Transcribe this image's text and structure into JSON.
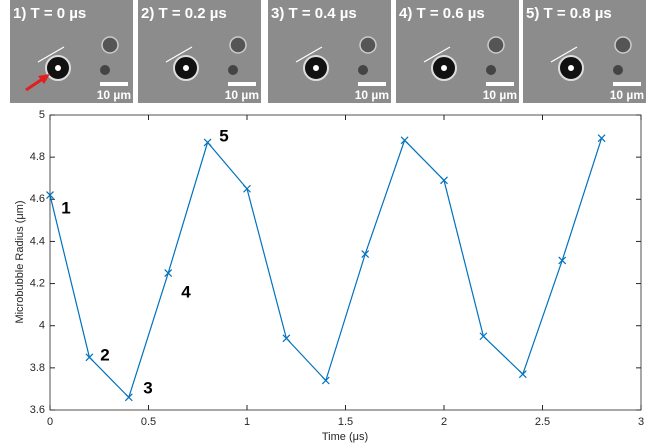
{
  "panels": [
    {
      "label": "1) T = 0 µs",
      "scale_label": "10 µm"
    },
    {
      "label": "2) T = 0.2 µs",
      "scale_label": "10 µm"
    },
    {
      "label": "3) T = 0.4 µs",
      "scale_label": "10 µm"
    },
    {
      "label": "4) T = 0.6 µs",
      "scale_label": "10 µm"
    },
    {
      "label": "5) T = 0.8 µs",
      "scale_label": "10 µm"
    }
  ],
  "chart_data": {
    "type": "line",
    "x_label": "Time (μs)",
    "y_label": "Microbubble Radius (μm)",
    "x": [
      0,
      0.2,
      0.4,
      0.6,
      0.8,
      1.0,
      1.2,
      1.4,
      1.6,
      1.8,
      2.0,
      2.2,
      2.4,
      2.6,
      2.8
    ],
    "values": [
      4.62,
      3.85,
      3.66,
      4.25,
      4.87,
      4.65,
      3.94,
      3.74,
      4.34,
      4.88,
      4.69,
      3.95,
      3.77,
      4.31,
      4.89
    ],
    "color": "#0072bd",
    "xlim": [
      0,
      3
    ],
    "xticks": [
      0,
      0.5,
      1,
      1.5,
      2,
      2.5,
      3
    ],
    "ylim": [
      3.6,
      5
    ],
    "yticks": [
      3.6,
      3.8,
      4,
      4.2,
      4.4,
      4.6,
      4.8,
      5
    ],
    "annotations": [
      "1",
      "2",
      "3",
      "4",
      "5"
    ]
  }
}
